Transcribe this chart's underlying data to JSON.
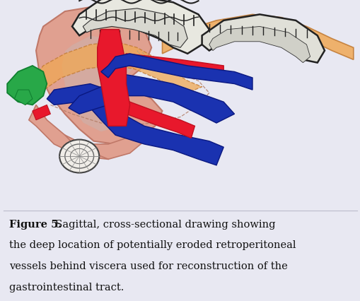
{
  "bg_color": "#e8e8f2",
  "caption_bold": "Figure 5.",
  "caption_normal": "  Sagittal, cross-sectional drawing showing the deep location of potentially eroded retroperitoneal vessels behind viscera used for reconstruction of the gastrointestinal tract.",
  "caption_fontsize": 10.5,
  "colors": {
    "pink_body": "#e0a090",
    "pink_body_edge": "#c07868",
    "pink_inner": "#d4b0a8",
    "red": "#e8182c",
    "red_edge": "#c01020",
    "blue": "#1a32b0",
    "blue_edge": "#0a1880",
    "orange": "#f0a855",
    "orange_edge": "#c07830",
    "green": "#28a848",
    "green_edge": "#108030",
    "black": "#222222",
    "gray": "#888888",
    "bg_draw": "#e8eaf4"
  }
}
